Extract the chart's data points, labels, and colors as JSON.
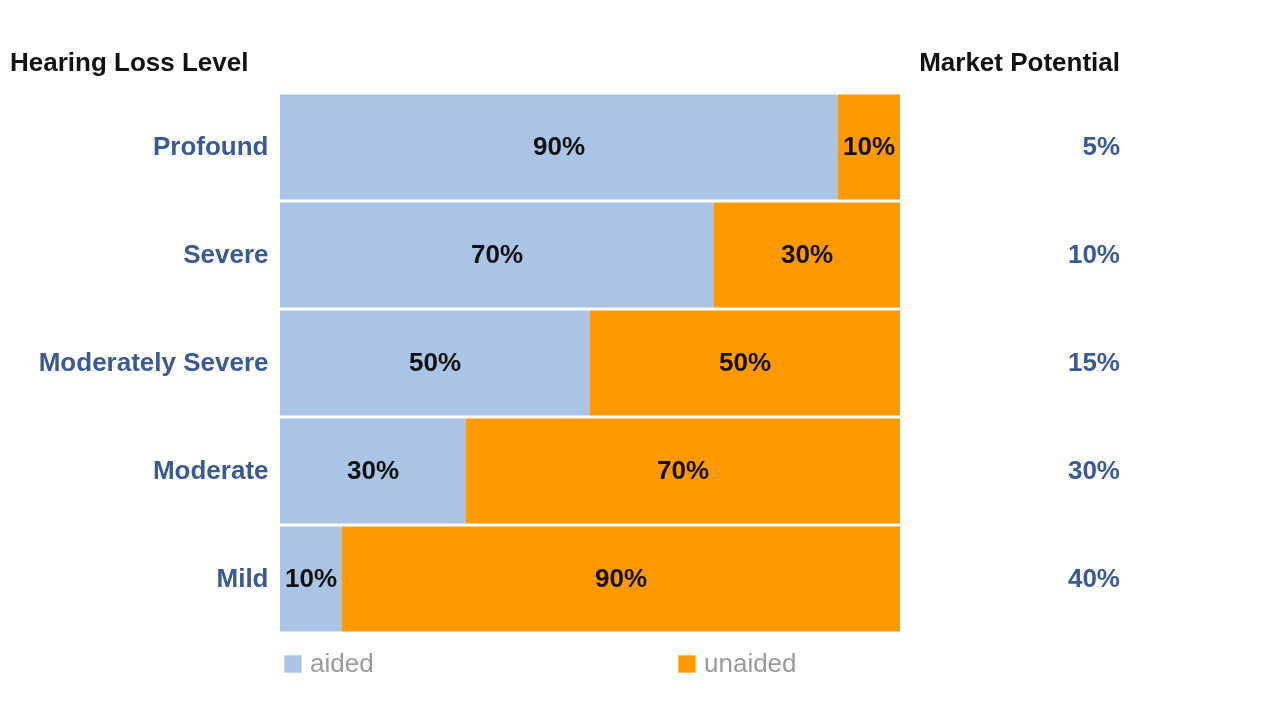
{
  "chart_data": {
    "type": "bar",
    "orientation": "horizontal",
    "stacked": true,
    "legend": "bottom",
    "ylabel": "Hearing Loss Level",
    "y2label": "Market Potential",
    "categories": [
      "Profound",
      "Severe",
      "Moderately Severe",
      "Moderate",
      "Mild"
    ],
    "series": [
      {
        "name": "aided",
        "color": "#a9c4e4",
        "values": [
          90,
          70,
          50,
          30,
          10
        ],
        "value_labels": [
          "90%",
          "70%",
          "50%",
          "30%",
          "10%"
        ]
      },
      {
        "name": "unaided",
        "color": "#ff9900",
        "values": [
          10,
          30,
          50,
          70,
          90
        ],
        "value_labels": [
          "10%",
          "30%",
          "50%",
          "70%",
          "90%"
        ]
      }
    ],
    "annotations": [
      "5%",
      "10%",
      "15%",
      "30%",
      "40%"
    ]
  }
}
